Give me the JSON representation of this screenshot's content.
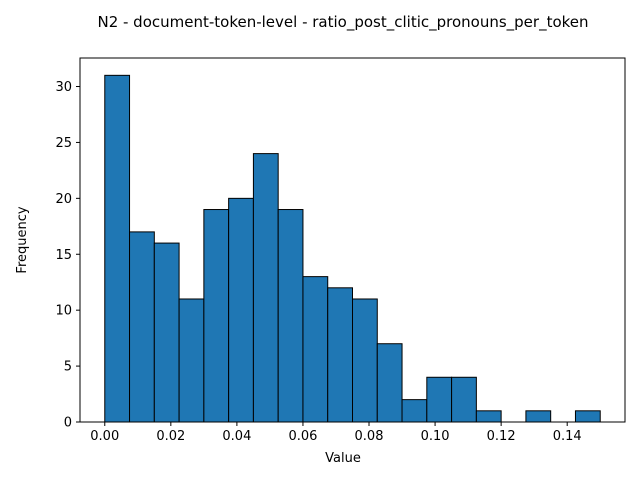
{
  "chart_data": {
    "type": "bar",
    "title": "N2 - document-token-level - ratio_post_clitic_pronouns_per_token",
    "xlabel": "Value",
    "ylabel": "Frequency",
    "bin_start": 0.0,
    "bin_width": 0.0075,
    "values": [
      31,
      17,
      16,
      11,
      19,
      20,
      24,
      19,
      13,
      12,
      11,
      7,
      2,
      4,
      4,
      1,
      0,
      1,
      0,
      1
    ],
    "xlim": [
      -0.0075,
      0.1575
    ],
    "ylim": [
      0,
      32.55
    ],
    "xticks": [
      "0.00",
      "0.02",
      "0.04",
      "0.06",
      "0.08",
      "0.10",
      "0.12",
      "0.14"
    ],
    "yticks": [
      "0",
      "5",
      "10",
      "15",
      "20",
      "25",
      "30"
    ],
    "bar_color": "#1f77b4",
    "edge_color": "#000000",
    "grid": false,
    "legend": "none"
  }
}
